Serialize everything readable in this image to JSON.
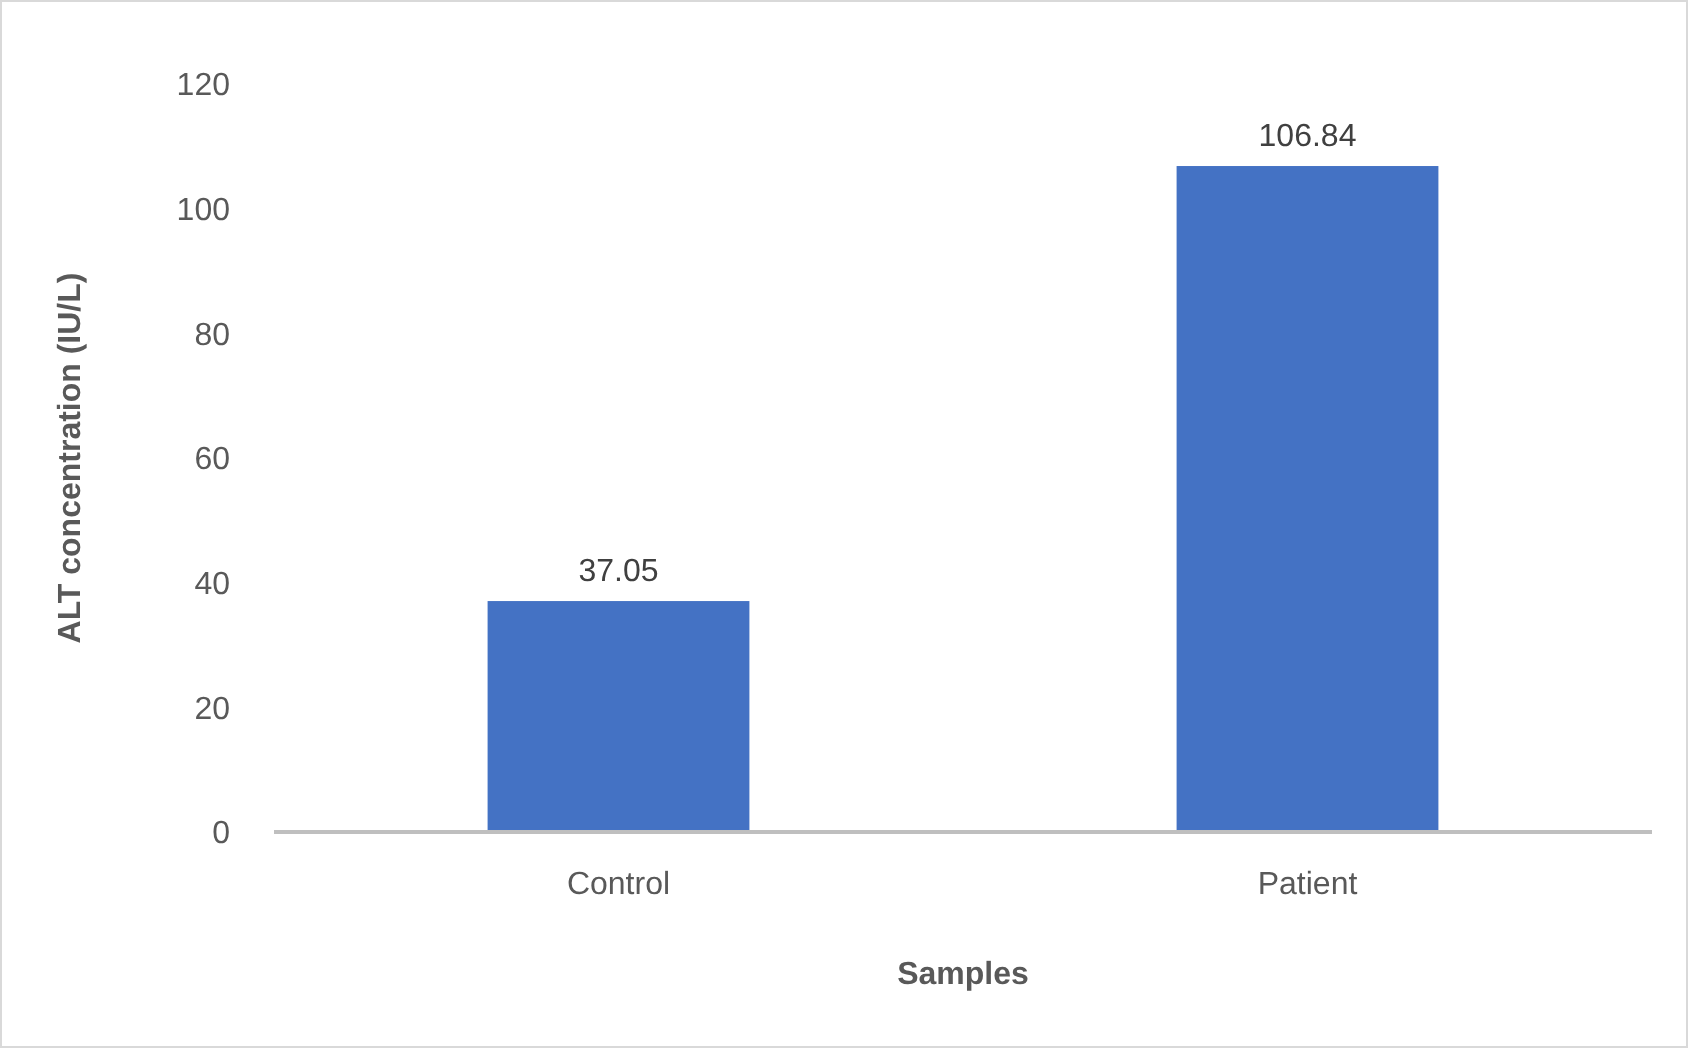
{
  "chart_data": {
    "type": "bar",
    "xlabel": "Samples",
    "ylabel": "ALT concentration (IU/L)",
    "categories": [
      "Control",
      "Patient"
    ],
    "values": [
      37.05,
      106.84
    ],
    "color": "#4472c4",
    "ylim": [
      0,
      120
    ],
    "yticks": [
      0,
      20,
      40,
      60,
      80,
      100,
      120
    ],
    "grid": false,
    "data_labels": true
  }
}
